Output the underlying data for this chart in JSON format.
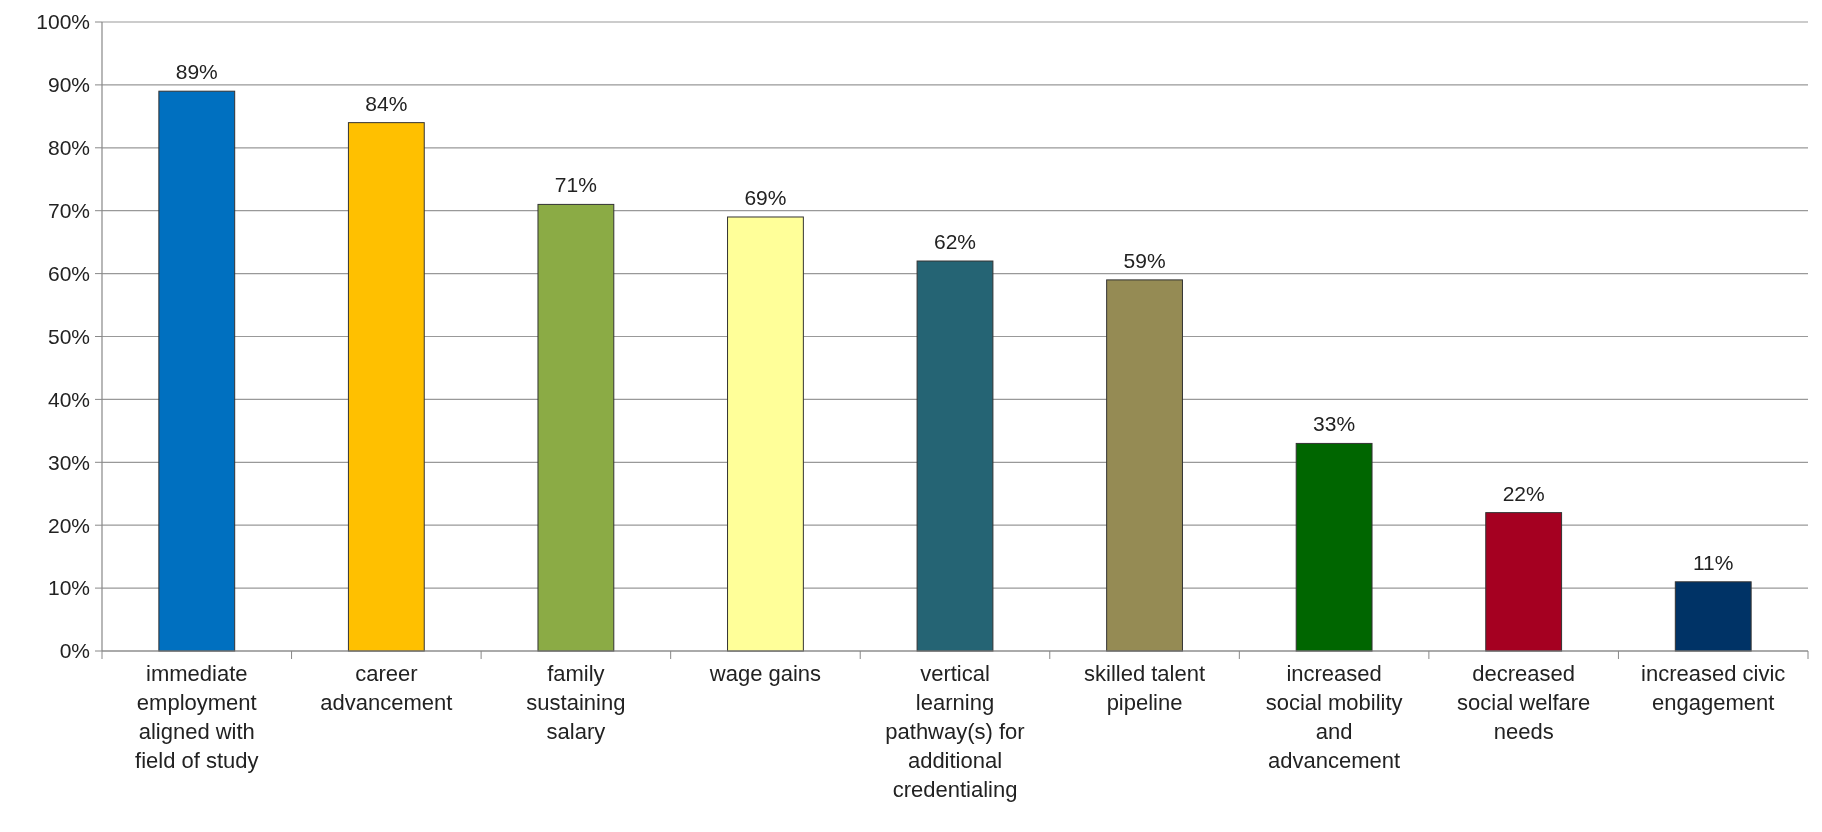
{
  "chart_data": {
    "type": "bar",
    "categories": [
      "immediate employment aligned with field of study",
      "career advancement",
      "family sustaining salary",
      "wage gains",
      "vertical learning pathway(s) for additional credentialing",
      "skilled talent pipeline",
      "increased social mobility and advancement",
      "decreased social welfare needs",
      "increased civic engagement"
    ],
    "values": [
      89,
      84,
      71,
      69,
      62,
      59,
      33,
      22,
      11
    ],
    "colors": [
      "#0070c0",
      "#ffc000",
      "#8bab45",
      "#ffff99",
      "#256474",
      "#958b54",
      "#006600",
      "#a50021",
      "#003366"
    ],
    "value_labels": [
      "89%",
      "84%",
      "71%",
      "69%",
      "62%",
      "59%",
      "33%",
      "22%",
      "11%"
    ],
    "ylim": [
      0,
      100
    ],
    "yticks": [
      {
        "value": 0,
        "label": "0%"
      },
      {
        "value": 10,
        "label": "10%"
      },
      {
        "value": 20,
        "label": "20%"
      },
      {
        "value": 30,
        "label": "30%"
      },
      {
        "value": 40,
        "label": "40%"
      },
      {
        "value": 50,
        "label": "50%"
      },
      {
        "value": 60,
        "label": "60%"
      },
      {
        "value": 70,
        "label": "70%"
      },
      {
        "value": 80,
        "label": "80%"
      },
      {
        "value": 90,
        "label": "90%"
      },
      {
        "value": 100,
        "label": "100%"
      }
    ],
    "grid": "y"
  }
}
